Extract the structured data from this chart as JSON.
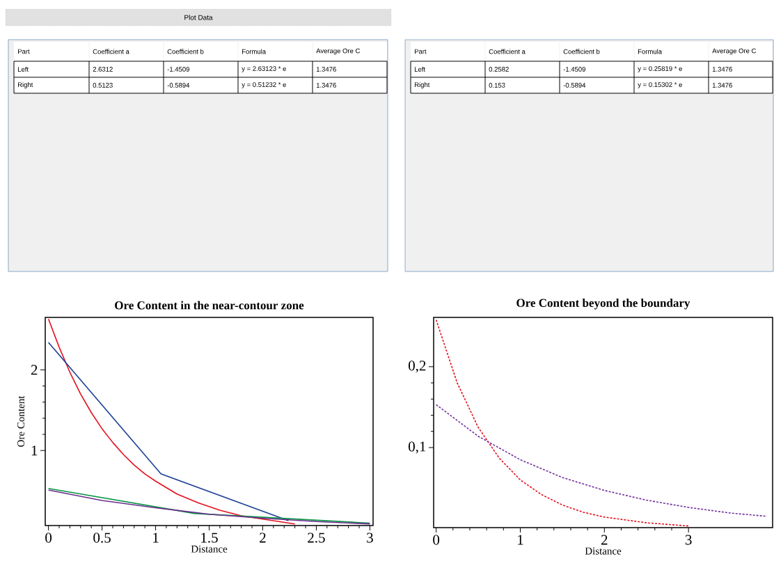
{
  "chart_data": [
    {
      "type": "other",
      "annotations": [
        "Plot Data"
      ]
    },
    {
      "type": "other",
      "annotations": [
        "Part",
        "Coefficient a",
        "Coefficient b",
        "Formula",
        "Average Ore C",
        "Left",
        "2.6312",
        "-1.4509",
        "y = 2.63123 * e",
        "1.3476",
        "Right",
        "0.5123",
        "-0.5894",
        "y = 0.51232 * e",
        "1.3476"
      ]
    },
    {
      "type": "other",
      "annotations": [
        "Part",
        "Coefficient a",
        "Coefficient b",
        "Formula",
        "Average Ore C",
        "Left",
        "0.2582",
        "-1.4509",
        "y = 0.25819 * e",
        "1.3476",
        "Right",
        "0.153",
        "-0.5894",
        "y = 0.15302 * e",
        "1.3476"
      ]
    },
    {
      "type": "line",
      "title": "Ore Content in the near-contour zone",
      "xlabel": "Distance",
      "ylabel": "Ore Content",
      "xlim": [
        -0.03,
        3.03
      ],
      "ylim": [
        0.07,
        2.65
      ],
      "xticks": [
        0,
        0.5,
        1,
        1.5,
        2,
        2.5,
        3
      ],
      "yticks": [
        1,
        2
      ],
      "line_style": "solid",
      "series": [
        {
          "color": "#e3101c",
          "x": [
            0,
            0.1,
            0.2,
            0.3,
            0.4,
            0.5,
            0.6,
            0.7,
            0.8,
            0.9,
            1.0,
            1.2,
            1.4,
            1.6,
            1.8,
            2.0,
            2.3
          ],
          "values": [
            2.63,
            2.28,
            1.97,
            1.7,
            1.47,
            1.27,
            1.1,
            0.95,
            0.82,
            0.71,
            0.62,
            0.46,
            0.35,
            0.26,
            0.19,
            0.15,
            0.09
          ]
        },
        {
          "color": "#1b3f95",
          "x": [
            0,
            1.05,
            2.24
          ],
          "values": [
            2.34,
            0.71,
            0.13
          ]
        },
        {
          "color": "#0b9444",
          "x": [
            0,
            1.36,
            3
          ],
          "values": [
            0.53,
            0.22,
            0.1
          ]
        },
        {
          "color": "#6a2c8c",
          "x": [
            0,
            0.5,
            1,
            1.5,
            2,
            2.5,
            3
          ],
          "values": [
            0.51,
            0.38,
            0.29,
            0.21,
            0.16,
            0.12,
            0.09
          ]
        }
      ]
    },
    {
      "type": "line",
      "title": "Ore Content beyond the boundary",
      "xlabel": "Distance",
      "xlim": [
        -0.03,
        4.0
      ],
      "ylim": [
        0.001,
        0.261
      ],
      "xticks": [
        0,
        1,
        2,
        3
      ],
      "yticks": [
        {
          "value": 0.1,
          "label": "0,1"
        },
        {
          "value": 0.2,
          "label": "0,2"
        }
      ],
      "line_style": "dashed",
      "series": [
        {
          "color": "#e3101c",
          "x": [
            0,
            0.25,
            0.5,
            0.75,
            1,
            1.25,
            1.5,
            1.75,
            2,
            2.5,
            3
          ],
          "values": [
            0.258,
            0.18,
            0.125,
            0.087,
            0.06,
            0.042,
            0.029,
            0.02,
            0.014,
            0.007,
            0.003
          ]
        },
        {
          "color": "#702f9a",
          "x": [
            0,
            0.5,
            1,
            1.5,
            2,
            2.5,
            3,
            3.5,
            3.93
          ],
          "values": [
            0.153,
            0.114,
            0.085,
            0.063,
            0.047,
            0.035,
            0.026,
            0.019,
            0.015
          ]
        }
      ]
    }
  ]
}
